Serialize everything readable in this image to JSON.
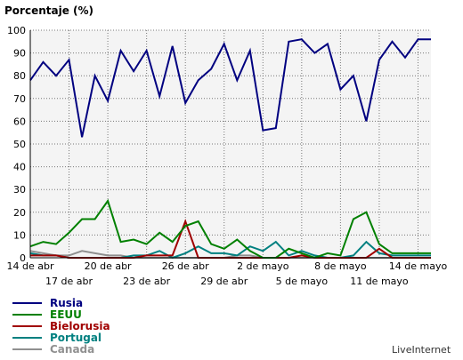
{
  "chart_data": {
    "type": "line",
    "ylabel": "Porcentaje (%)",
    "ylim": [
      0,
      100
    ],
    "yticks": [
      0,
      10,
      20,
      30,
      40,
      50,
      60,
      70,
      80,
      90,
      100
    ],
    "grid": true,
    "legend_position": "bottom-left",
    "xtick_labels_row1": [
      "14 de abr",
      "20 de abr",
      "26 de abr",
      "2 de mayo",
      "8 de mayo",
      "14 de mayo"
    ],
    "xtick_labels_row2": [
      "17 de abr",
      "23 de abr",
      "29 de abr",
      "5 de mayo",
      "11 de mayo"
    ],
    "x": [
      "14 abr",
      "15 abr",
      "16 abr",
      "17 abr",
      "18 abr",
      "19 abr",
      "20 abr",
      "21 abr",
      "22 abr",
      "23 abr",
      "24 abr",
      "25 abr",
      "26 abr",
      "27 abr",
      "28 abr",
      "29 abr",
      "30 abr",
      "1 mayo",
      "2 mayo",
      "3 mayo",
      "4 mayo",
      "5 mayo",
      "6 mayo",
      "7 mayo",
      "8 mayo",
      "9 mayo",
      "10 mayo",
      "11 mayo",
      "12 mayo",
      "13 mayo",
      "14 mayo",
      "15 mayo"
    ],
    "series": [
      {
        "name": "Rusia",
        "color": "#000080",
        "values": [
          78,
          86,
          80,
          87,
          53,
          80,
          69,
          91,
          82,
          91,
          71,
          93,
          68,
          78,
          83,
          94,
          78,
          91,
          56,
          57,
          95,
          96,
          90,
          94,
          74,
          80,
          60,
          87,
          95,
          88,
          96,
          96
        ]
      },
      {
        "name": "EEUU",
        "color": "#008000",
        "values": [
          5,
          7,
          6,
          11,
          17,
          17,
          25,
          7,
          8,
          6,
          11,
          7,
          14,
          16,
          6,
          4,
          8,
          3,
          0,
          0,
          4,
          2,
          0,
          2,
          1,
          17,
          20,
          6,
          2,
          2,
          2,
          2
        ]
      },
      {
        "name": "Bielorusia",
        "color": "#a00000",
        "values": [
          1,
          1,
          1,
          0,
          0,
          0,
          0,
          0,
          0,
          1,
          1,
          1,
          16,
          0,
          0,
          0,
          0,
          0,
          0,
          0,
          0,
          1,
          0,
          0,
          0,
          0,
          0,
          4,
          0,
          0,
          0,
          0
        ]
      },
      {
        "name": "Portugal",
        "color": "#008080",
        "values": [
          2,
          1,
          1,
          0,
          0,
          0,
          0,
          0,
          1,
          1,
          3,
          0,
          2,
          5,
          2,
          2,
          1,
          5,
          3,
          7,
          1,
          3,
          1,
          0,
          0,
          1,
          7,
          2,
          1,
          1,
          1,
          1
        ]
      },
      {
        "name": "Canada",
        "color": "#909090",
        "values": [
          3,
          2,
          1,
          1,
          3,
          2,
          1,
          1,
          0,
          0,
          0,
          0,
          0,
          0,
          0,
          0,
          1,
          1,
          0,
          0,
          0,
          0,
          0,
          0,
          0,
          0,
          0,
          0,
          0,
          0,
          0,
          0
        ]
      }
    ]
  },
  "legend": {
    "items": [
      {
        "label": "Rusia",
        "color": "#000080"
      },
      {
        "label": "EEUU",
        "color": "#008000"
      },
      {
        "label": "Bielorusia",
        "color": "#a00000"
      },
      {
        "label": "Portugal",
        "color": "#008080"
      },
      {
        "label": "Canada",
        "color": "#909090"
      }
    ]
  },
  "brand": "LiveInternet"
}
